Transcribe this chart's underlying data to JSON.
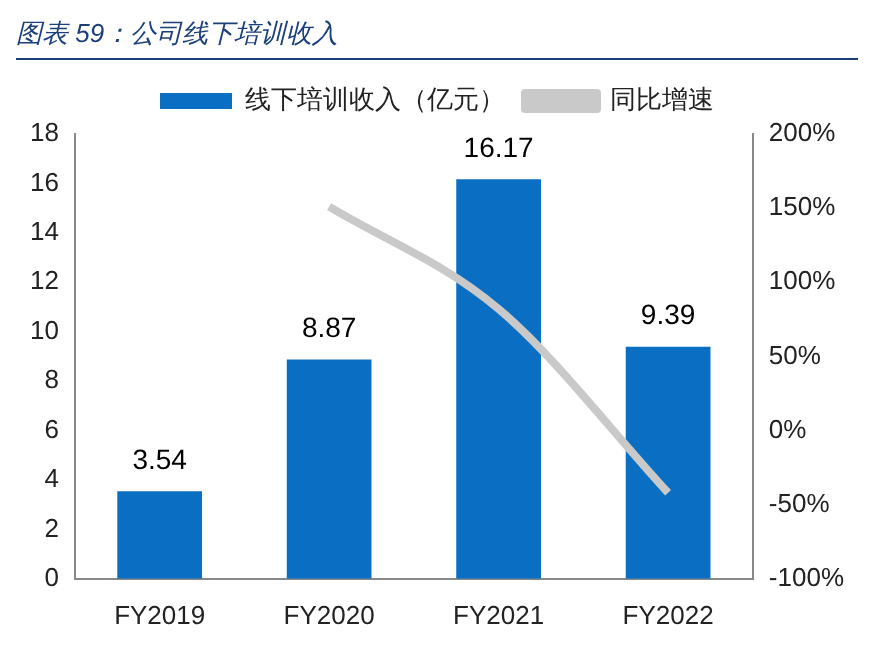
{
  "chart_data": {
    "type": "bar",
    "title": "图表 59：公司线下培训收入",
    "categories": [
      "FY2019",
      "FY2020",
      "FY2021",
      "FY2022"
    ],
    "series": [
      {
        "name": "线下培训收入（亿元）",
        "color": "#0a6fc2",
        "values": [
          3.54,
          8.87,
          16.17,
          9.39
        ],
        "value_labels": [
          "3.54",
          "8.87",
          "16.17",
          "9.39"
        ]
      },
      {
        "name": "同比增速",
        "type": "line",
        "axis": "y2",
        "color": "#c9c9c9",
        "values": [
          null,
          151,
          82,
          -42
        ]
      }
    ],
    "ylim": [
      0,
      18
    ],
    "yticks": [
      0,
      2,
      4,
      6,
      8,
      10,
      12,
      14,
      16,
      18
    ],
    "y2lim": [
      -100,
      200
    ],
    "y2ticks": [
      {
        "value": -100,
        "label": "-100%"
      },
      {
        "value": -50,
        "label": "-50%"
      },
      {
        "value": 0,
        "label": "0%"
      },
      {
        "value": 50,
        "label": "50%"
      },
      {
        "value": 100,
        "label": "100%"
      },
      {
        "value": 150,
        "label": "150%"
      },
      {
        "value": 200,
        "label": "200%"
      }
    ],
    "grid": false,
    "legend": "top",
    "marker": "none"
  }
}
